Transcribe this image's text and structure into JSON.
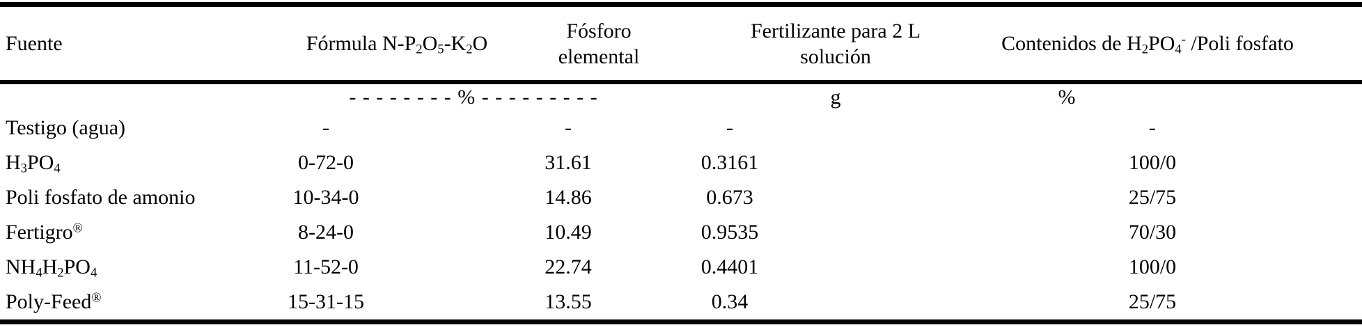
{
  "table": {
    "columns": {
      "fuente": "Fuente",
      "formula_html": "Fórmula N-P<sub>2</sub>O<sub>5</sub>-K<sub>2</sub>O",
      "fosforo_html": "Fósforo<br>elemental",
      "fertilizante_html": "Fertilizante para 2 L<br>solución",
      "contenidos_html": "Contenidos de H<sub>2</sub>PO<sub>4</sub><sup>-</sup> /Poli fosfato"
    },
    "units": {
      "formula_fosforo": "- - - - - - - -  %  - - - - - - - - -",
      "fertilizante": "g",
      "contenidos": "%"
    },
    "rows": [
      {
        "fuente_html": "Testigo (agua)",
        "formula": "-",
        "fosforo": "-",
        "fertilizante": "-",
        "contenidos": "-"
      },
      {
        "fuente_html": "H<sub>3</sub>PO<sub>4</sub>",
        "formula": "0-72-0",
        "fosforo": "31.61",
        "fertilizante": "0.3161",
        "contenidos": "100/0"
      },
      {
        "fuente_html": "Poli fosfato de amonio",
        "formula": "10-34-0",
        "fosforo": "14.86",
        "fertilizante": "0.673",
        "contenidos": "25/75"
      },
      {
        "fuente_html": "Fertigro<sup>®</sup>",
        "formula": "8-24-0",
        "fosforo": "10.49",
        "fertilizante": "0.9535",
        "contenidos": "70/30"
      },
      {
        "fuente_html": "NH<sub>4</sub>H<sub>2</sub>PO<sub>4</sub>",
        "formula": "11-52-0",
        "fosforo": "22.74",
        "fertilizante": "0.4401",
        "contenidos": "100/0"
      },
      {
        "fuente_html": "Poly-Feed<sup>®</sup>",
        "formula": "15-31-15",
        "fosforo": "13.55",
        "fertilizante": "0.34",
        "contenidos": "25/75"
      }
    ]
  },
  "colors": {
    "text": "#000000",
    "background": "#ffffff",
    "rule": "#000000"
  }
}
